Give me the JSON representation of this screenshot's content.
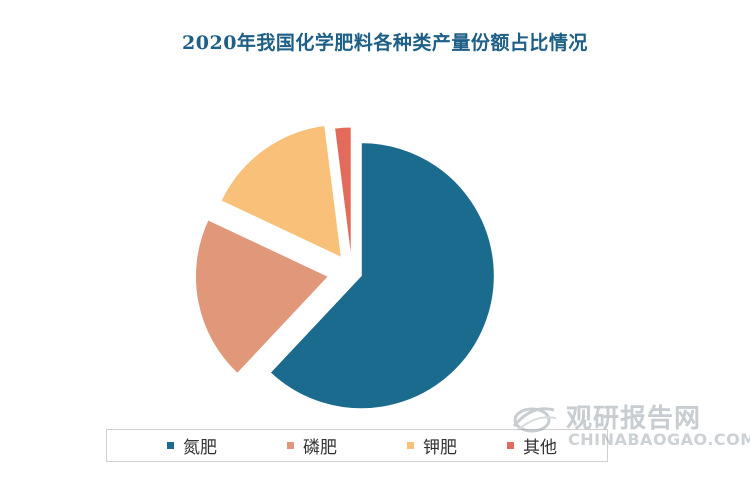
{
  "chart_data": {
    "type": "pie",
    "title": "2020年我国化学肥料各种类产量份额占比情况",
    "categories": [
      "氮肥",
      "磷肥",
      "钾肥",
      "其他"
    ],
    "values": [
      62,
      20,
      16,
      2
    ],
    "unit": "%",
    "colors": [
      "#1b6b8e",
      "#e0977a",
      "#f9c07a",
      "#e26b5b"
    ],
    "exploded": true,
    "legend_position": "bottom",
    "data_labels": false
  },
  "watermark": {
    "cn": "观研报告网",
    "en": "CHINABAOGAO.COM",
    "icon": "globe-swoosh-icon"
  }
}
